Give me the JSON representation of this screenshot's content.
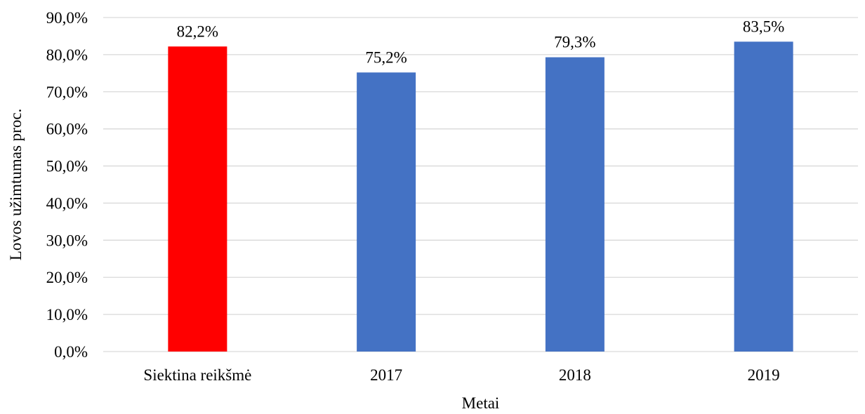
{
  "chart_data": {
    "type": "bar",
    "categories": [
      "Siektina reikšmė",
      "2017",
      "2018",
      "2019"
    ],
    "values": [
      82.2,
      75.2,
      79.3,
      83.5
    ],
    "value_labels": [
      "82,2%",
      "75,2%",
      "79,3%",
      "83,5%"
    ],
    "bar_colors": [
      "#ff0000",
      "#4472c4",
      "#4472c4",
      "#4472c4"
    ],
    "xlabel": "Metai",
    "ylabel": "Lovos užimtumas proc.",
    "ylim": [
      0,
      90
    ],
    "yticks": [
      0,
      10,
      20,
      30,
      40,
      50,
      60,
      70,
      80,
      90
    ],
    "ytick_labels": [
      "0,0%",
      "10,0%",
      "20,0%",
      "30,0%",
      "40,0%",
      "50,0%",
      "60,0%",
      "70,0%",
      "80,0%",
      "90,0%"
    ],
    "grid": true,
    "legend": "none"
  },
  "colors": {
    "target": "#ff0000",
    "actual": "#4472c4",
    "grid": "#d9d9d9"
  }
}
